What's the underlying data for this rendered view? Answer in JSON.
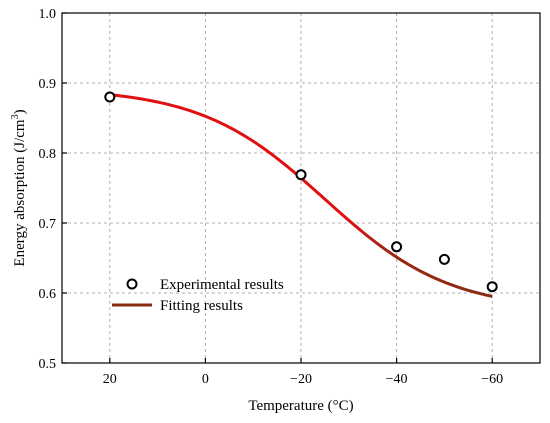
{
  "chart_data": {
    "type": "scatter",
    "xlabel": "Temperature (°C)",
    "ylabel_main": "Energy absorption (J/cm",
    "ylabel_sup": "3",
    "ylabel_close": ")",
    "xlim": [
      30,
      -70
    ],
    "ylim": [
      0.5,
      1.0
    ],
    "x_ticks": [
      20,
      0,
      -20,
      -40,
      -60
    ],
    "x_tick_labels": [
      "20",
      "0",
      "−20",
      "−40",
      "−60"
    ],
    "y_ticks": [
      0.5,
      0.6,
      0.7,
      0.8,
      0.9,
      1.0
    ],
    "y_tick_labels": [
      "0.5",
      "0.6",
      "0.7",
      "0.8",
      "0.9",
      "1.0"
    ],
    "grid": true,
    "legend_position": "bottom-left",
    "series": [
      {
        "name": "Experimental results",
        "kind": "markers",
        "color": "#000000",
        "x": [
          20,
          -20,
          -40,
          -50,
          -60
        ],
        "y": [
          0.88,
          0.769,
          0.666,
          0.648,
          0.609
        ]
      },
      {
        "name": "Fitting results",
        "kind": "line",
        "color": "#e01010",
        "color_end": "#8b2a10",
        "fit_model": "sigmoid",
        "fit_params": {
          "upper": 0.893,
          "lower": 0.575,
          "x0": -25,
          "scale": 13
        },
        "x_range": [
          20,
          -60
        ]
      }
    ]
  }
}
